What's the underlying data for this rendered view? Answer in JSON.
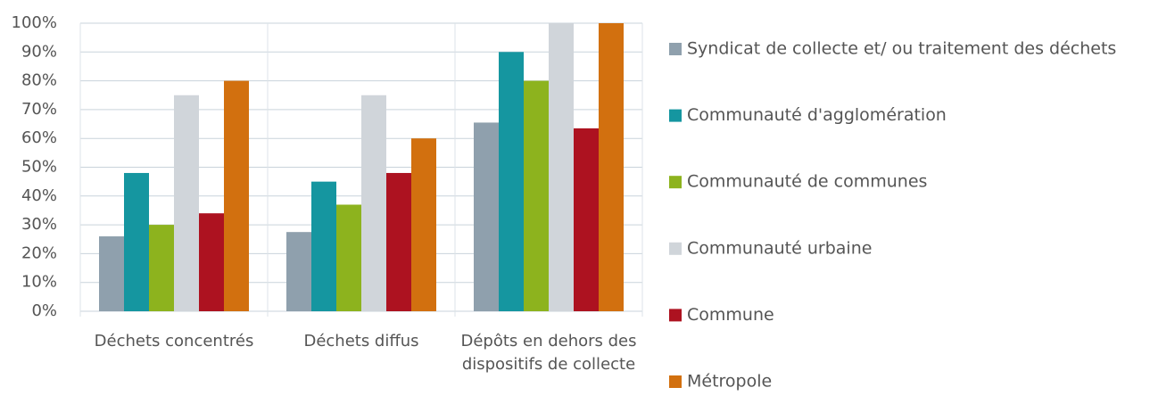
{
  "chart_data": {
    "type": "bar",
    "categories": [
      "Déchets concentrés",
      "Déchets diffus",
      "Dépôts en dehors des dispositifs de collecte"
    ],
    "series": [
      {
        "name": "Syndicat de collecte et/ ou traitement des déchets",
        "color": "#8fa0ad",
        "values": [
          26,
          27.5,
          65.5
        ]
      },
      {
        "name": "Communauté d'agglomération",
        "color": "#1596a0",
        "values": [
          48,
          45,
          90
        ]
      },
      {
        "name": "Communauté de communes",
        "color": "#8db31e",
        "values": [
          30,
          37,
          80
        ]
      },
      {
        "name": "Communauté urbaine",
        "color": "#d0d5da",
        "values": [
          75,
          75,
          100
        ]
      },
      {
        "name": "Commune",
        "color": "#ad1220",
        "values": [
          34,
          48,
          63.5
        ]
      },
      {
        "name": "Métropole",
        "color": "#d2700f",
        "values": [
          80,
          60,
          100
        ]
      }
    ],
    "ylim": [
      0,
      100
    ],
    "yticks": [
      {
        "value": 0,
        "label": "0%"
      },
      {
        "value": 10,
        "label": "10%"
      },
      {
        "value": 20,
        "label": "20%"
      },
      {
        "value": 30,
        "label": "30%"
      },
      {
        "value": 40,
        "label": "40%"
      },
      {
        "value": 50,
        "label": "50%"
      },
      {
        "value": 60,
        "label": "60%"
      },
      {
        "value": 70,
        "label": "70%"
      },
      {
        "value": 80,
        "label": "80%"
      },
      {
        "value": 90,
        "label": "90%"
      },
      {
        "value": 100,
        "label": "100%"
      }
    ],
    "grid": true,
    "legend": "right"
  }
}
